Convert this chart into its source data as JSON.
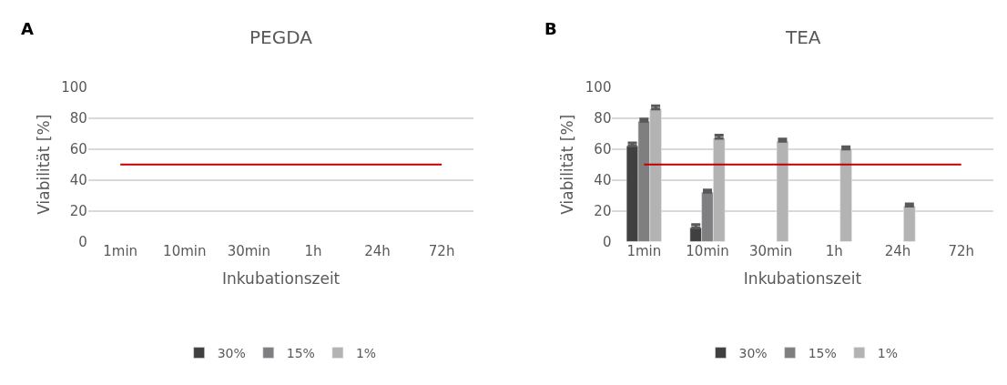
{
  "chart_data": [
    {
      "type": "bar",
      "title": "PEGDA",
      "xlabel": "Inkubationszeit",
      "ylabel": "Viabilität [%]",
      "annotations": [
        "A"
      ],
      "categories": [
        "1min",
        "10min",
        "30min",
        "1h",
        "24h",
        "72h"
      ],
      "ylim": [
        0,
        100
      ],
      "yticks": [
        0,
        20,
        40,
        60,
        80,
        100
      ],
      "grid": "y",
      "legend": "bottom",
      "series": [
        {
          "name": "30%",
          "color": "#404040",
          "values": [
            null,
            null,
            null,
            null,
            null,
            null
          ]
        },
        {
          "name": "15%",
          "color": "#7f7f7f",
          "values": [
            null,
            null,
            null,
            null,
            null,
            null
          ]
        },
        {
          "name": "1%",
          "color": "#b3b3b3",
          "values": [
            null,
            null,
            null,
            null,
            null,
            null
          ]
        },
        {
          "type": "line",
          "color": "#c00000",
          "values": [
            50,
            50,
            50,
            50,
            50,
            50
          ]
        }
      ]
    },
    {
      "type": "bar",
      "title": "TEA",
      "xlabel": "Inkubationszeit",
      "ylabel": "Viabilität [%]",
      "annotations": [
        "B"
      ],
      "categories": [
        "1min",
        "10min",
        "30min",
        "1h",
        "24h",
        "72h"
      ],
      "ylim": [
        0,
        100
      ],
      "yticks": [
        0,
        20,
        40,
        60,
        80,
        100
      ],
      "grid": "y",
      "legend": "bottom",
      "series": [
        {
          "name": "30%",
          "color": "#404040",
          "values": [
            62,
            9,
            null,
            null,
            null,
            null
          ],
          "errors": [
            2,
            2,
            null,
            null,
            null,
            null
          ]
        },
        {
          "name": "15%",
          "color": "#7f7f7f",
          "values": [
            78,
            32,
            null,
            null,
            null,
            null
          ],
          "errors": [
            1.5,
            1.5,
            null,
            null,
            null,
            null
          ]
        },
        {
          "name": "1%",
          "color": "#b3b3b3",
          "values": [
            86,
            67,
            65,
            60,
            23,
            null
          ],
          "errors": [
            2,
            2,
            1.5,
            1.5,
            1.5,
            null
          ]
        },
        {
          "type": "line",
          "color": "#c00000",
          "values": [
            50,
            50,
            50,
            50,
            50,
            50
          ]
        }
      ]
    }
  ]
}
